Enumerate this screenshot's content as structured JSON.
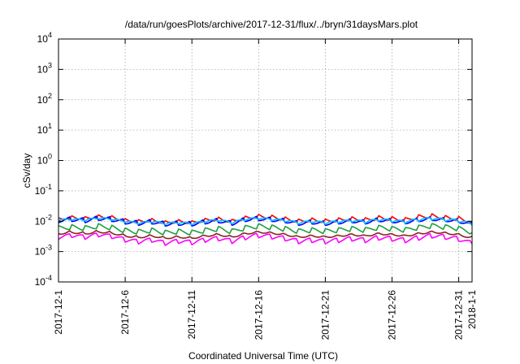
{
  "chart_data": {
    "type": "line",
    "title": "/data/run/goesPlots/archive/2017-12-31/flux/../bryn/31daysMars.plot",
    "xlabel": "Coordinated Universal Time (UTC)",
    "ylabel": "cSv/day",
    "yscale": "log",
    "ylim": [
      0.0001,
      10000
    ],
    "xlim": [
      "2017-12-01",
      "2018-01-01"
    ],
    "grid": true,
    "y_ticks": [
      {
        "base": "10",
        "exp": "4"
      },
      {
        "base": "10",
        "exp": "3"
      },
      {
        "base": "10",
        "exp": "2"
      },
      {
        "base": "10",
        "exp": "1"
      },
      {
        "base": "10",
        "exp": "0"
      },
      {
        "base": "10",
        "exp": "-1"
      },
      {
        "base": "10",
        "exp": "-2"
      },
      {
        "base": "10",
        "exp": "-3"
      },
      {
        "base": "10",
        "exp": "-4"
      }
    ],
    "x_ticks": [
      "2017-12-1",
      "2017-12-6",
      "2017-12-11",
      "2017-12-16",
      "2017-12-21",
      "2017-12-26",
      "2017-12-31",
      "2018-1-1"
    ],
    "series": [
      {
        "color": "#ff0000",
        "x": [
          "2017-12-01",
          "2017-12-02",
          "2017-12-03",
          "2017-12-04",
          "2017-12-05",
          "2017-12-06",
          "2017-12-07",
          "2017-12-08",
          "2017-12-09",
          "2017-12-10",
          "2017-12-11",
          "2017-12-12",
          "2017-12-13",
          "2017-12-14",
          "2017-12-15",
          "2017-12-16",
          "2017-12-17",
          "2017-12-18",
          "2017-12-19",
          "2017-12-20",
          "2017-12-21",
          "2017-12-22",
          "2017-12-23",
          "2017-12-24",
          "2017-12-25",
          "2017-12-26",
          "2017-12-27",
          "2017-12-28",
          "2017-12-29",
          "2017-12-30",
          "2017-12-31",
          "2018-01-01"
        ],
        "y": [
          0.013,
          0.015,
          0.014,
          0.016,
          0.015,
          0.012,
          0.011,
          0.012,
          0.01,
          0.011,
          0.01,
          0.012,
          0.013,
          0.011,
          0.014,
          0.016,
          0.015,
          0.013,
          0.011,
          0.012,
          0.011,
          0.012,
          0.013,
          0.012,
          0.014,
          0.013,
          0.012,
          0.015,
          0.016,
          0.014,
          0.013,
          0.01
        ]
      },
      {
        "color": "#0000ff",
        "x": [
          "2017-12-01",
          "2017-12-02",
          "2017-12-03",
          "2017-12-04",
          "2017-12-05",
          "2017-12-06",
          "2017-12-07",
          "2017-12-08",
          "2017-12-09",
          "2017-12-10",
          "2017-12-11",
          "2017-12-12",
          "2017-12-13",
          "2017-12-14",
          "2017-12-15",
          "2017-12-16",
          "2017-12-17",
          "2017-12-18",
          "2017-12-19",
          "2017-12-20",
          "2017-12-21",
          "2017-12-22",
          "2017-12-23",
          "2017-12-24",
          "2017-12-25",
          "2017-12-26",
          "2017-12-27",
          "2017-12-28",
          "2017-12-29",
          "2017-12-30",
          "2017-12-31",
          "2018-01-01"
        ],
        "y": [
          0.011,
          0.012,
          0.011,
          0.013,
          0.012,
          0.01,
          0.009,
          0.01,
          0.0085,
          0.009,
          0.0085,
          0.01,
          0.011,
          0.009,
          0.012,
          0.013,
          0.012,
          0.011,
          0.009,
          0.01,
          0.009,
          0.01,
          0.011,
          0.01,
          0.012,
          0.011,
          0.01,
          0.012,
          0.013,
          0.012,
          0.011,
          0.0085
        ]
      },
      {
        "color": "#00c0ff",
        "x": [
          "2017-12-01",
          "2017-12-02",
          "2017-12-03",
          "2017-12-04",
          "2017-12-05",
          "2017-12-06",
          "2017-12-07",
          "2017-12-08",
          "2017-12-09",
          "2017-12-10",
          "2017-12-11",
          "2017-12-12",
          "2017-12-13",
          "2017-12-14",
          "2017-12-15",
          "2017-12-16",
          "2017-12-17",
          "2017-12-18",
          "2017-12-19",
          "2017-12-20",
          "2017-12-21",
          "2017-12-22",
          "2017-12-23",
          "2017-12-24",
          "2017-12-25",
          "2017-12-26",
          "2017-12-27",
          "2017-12-28",
          "2017-12-29",
          "2017-12-30",
          "2017-12-31",
          "2018-01-01"
        ],
        "y": [
          0.0095,
          0.01,
          0.0095,
          0.011,
          0.01,
          0.0085,
          0.0075,
          0.0085,
          0.0072,
          0.0078,
          0.0072,
          0.0085,
          0.0095,
          0.0078,
          0.01,
          0.011,
          0.01,
          0.0092,
          0.0078,
          0.0085,
          0.0078,
          0.0085,
          0.0092,
          0.0085,
          0.01,
          0.0092,
          0.0085,
          0.01,
          0.011,
          0.01,
          0.0092,
          0.0072
        ]
      },
      {
        "color": "#20a040",
        "x": [
          "2017-12-01",
          "2017-12-02",
          "2017-12-03",
          "2017-12-04",
          "2017-12-05",
          "2017-12-06",
          "2017-12-07",
          "2017-12-08",
          "2017-12-09",
          "2017-12-10",
          "2017-12-11",
          "2017-12-12",
          "2017-12-13",
          "2017-12-14",
          "2017-12-15",
          "2017-12-16",
          "2017-12-17",
          "2017-12-18",
          "2017-12-19",
          "2017-12-20",
          "2017-12-21",
          "2017-12-22",
          "2017-12-23",
          "2017-12-24",
          "2017-12-25",
          "2017-12-26",
          "2017-12-27",
          "2017-12-28",
          "2017-12-29",
          "2017-12-30",
          "2017-12-31",
          "2018-01-01"
        ],
        "y": [
          0.006,
          0.0065,
          0.006,
          0.007,
          0.0062,
          0.005,
          0.0045,
          0.005,
          0.0042,
          0.0046,
          0.0042,
          0.005,
          0.0056,
          0.0046,
          0.006,
          0.0068,
          0.0062,
          0.0055,
          0.0046,
          0.005,
          0.0046,
          0.005,
          0.0055,
          0.005,
          0.006,
          0.0055,
          0.005,
          0.006,
          0.0068,
          0.0062,
          0.0055,
          0.0042
        ]
      },
      {
        "color": "#8b2323",
        "x": [
          "2017-12-01",
          "2017-12-02",
          "2017-12-03",
          "2017-12-04",
          "2017-12-05",
          "2017-12-06",
          "2017-12-07",
          "2017-12-08",
          "2017-12-09",
          "2017-12-10",
          "2017-12-11",
          "2017-12-12",
          "2017-12-13",
          "2017-12-14",
          "2017-12-15",
          "2017-12-16",
          "2017-12-17",
          "2017-12-18",
          "2017-12-19",
          "2017-12-20",
          "2017-12-21",
          "2017-12-22",
          "2017-12-23",
          "2017-12-24",
          "2017-12-25",
          "2017-12-26",
          "2017-12-27",
          "2017-12-28",
          "2017-12-29",
          "2017-12-30",
          "2017-12-31",
          "2018-01-01"
        ],
        "y": [
          0.0045,
          0.005,
          0.0045,
          0.0052,
          0.0047,
          0.0038,
          0.0034,
          0.0038,
          0.0032,
          0.0035,
          0.0032,
          0.0038,
          0.0042,
          0.0035,
          0.0045,
          0.0051,
          0.0047,
          0.0042,
          0.0035,
          0.0038,
          0.0035,
          0.0038,
          0.0042,
          0.0038,
          0.0045,
          0.0042,
          0.0038,
          0.0045,
          0.0051,
          0.0047,
          0.0042,
          0.0032
        ]
      },
      {
        "color": "#ff00ff",
        "x": [
          "2017-12-01",
          "2017-12-02",
          "2017-12-03",
          "2017-12-04",
          "2017-12-05",
          "2017-12-06",
          "2017-12-07",
          "2017-12-08",
          "2017-12-09",
          "2017-12-10",
          "2017-12-11",
          "2017-12-12",
          "2017-12-13",
          "2017-12-14",
          "2017-12-15",
          "2017-12-16",
          "2017-12-17",
          "2017-12-18",
          "2017-12-19",
          "2017-12-20",
          "2017-12-21",
          "2017-12-22",
          "2017-12-23",
          "2017-12-24",
          "2017-12-25",
          "2017-12-26",
          "2017-12-27",
          "2017-12-28",
          "2017-12-29",
          "2017-12-30",
          "2017-12-31",
          "2018-01-01"
        ],
        "y": [
          0.0028,
          0.0032,
          0.0028,
          0.0034,
          0.003,
          0.0023,
          0.002,
          0.0023,
          0.0018,
          0.0021,
          0.0019,
          0.0023,
          0.0026,
          0.0021,
          0.0028,
          0.0033,
          0.003,
          0.0026,
          0.0021,
          0.0023,
          0.0021,
          0.0023,
          0.0026,
          0.0023,
          0.0028,
          0.0026,
          0.0023,
          0.0028,
          0.0033,
          0.003,
          0.0026,
          0.0018
        ]
      }
    ]
  }
}
